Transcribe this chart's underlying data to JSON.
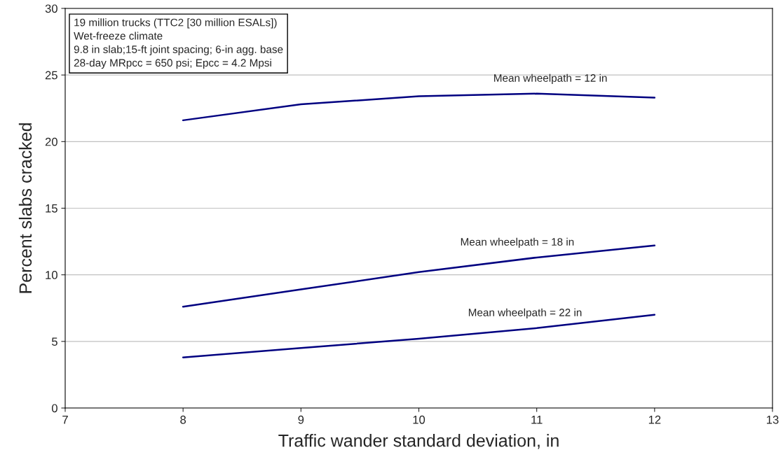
{
  "chart_data": {
    "type": "line",
    "xlabel": "Traffic wander standard deviation, in",
    "ylabel": "Percent slabs cracked",
    "x": [
      8,
      9,
      10,
      11,
      12
    ],
    "series": [
      {
        "name": "Mean wheelpath = 12 in",
        "color": "#000080",
        "values": [
          21.6,
          22.8,
          23.4,
          23.6,
          23.3
        ]
      },
      {
        "name": "Mean wheelpath = 18 in",
        "color": "#000080",
        "values": [
          7.6,
          8.9,
          10.2,
          11.3,
          12.2
        ]
      },
      {
        "name": "Mean wheelpath = 22 in",
        "color": "#000080",
        "values": [
          3.8,
          4.5,
          5.2,
          6.0,
          7.0
        ]
      }
    ],
    "xlim": [
      7,
      13
    ],
    "xticks": [
      7,
      8,
      9,
      10,
      11,
      12,
      13
    ],
    "ylim": [
      0,
      30
    ],
    "yticks": [
      0,
      5,
      10,
      15,
      20,
      25,
      30
    ],
    "grid": "y",
    "legend": false,
    "marker": "none",
    "line_style": "solid",
    "annotations": [
      "19 million trucks (TTC2 [30 million ESALs])\nWet-freeze climate\n9.8 in slab;15-ft joint spacing; 6-in agg. base\n28-day MRpcc = 650 psi; Epcc = 4.2 Mpsi"
    ]
  }
}
